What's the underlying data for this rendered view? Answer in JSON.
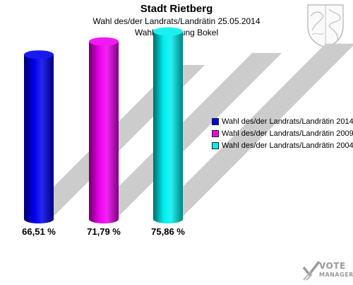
{
  "header": {
    "title": "Stadt Rietberg",
    "subtitle": "Wahl des/der Landrats/Landrätin 25.05.2014",
    "subtitle2": "Wahlbeteiligung Bokel"
  },
  "chart_data": {
    "type": "bar",
    "style": "3d-cylinder",
    "title": "Stadt Rietberg",
    "categories": [
      "Wahl des/der Landrats/Landrätin 2014",
      "Wahl des/der Landrats/Landrätin 2009",
      "Wahl des/der Landrats/Landrätin 2004"
    ],
    "values": [
      66.51,
      71.79,
      75.86
    ],
    "data_labels": [
      "66,51 %",
      "71,79 %",
      "75,86 %"
    ],
    "colors": [
      "#0000ee",
      "#ee00ee",
      "#00eeee"
    ],
    "unit": "%",
    "ylim": [
      0,
      80
    ],
    "grid": false,
    "legend_position": "right"
  },
  "legend": {
    "items": [
      {
        "label": "Wahl des/der Landrats/Landrätin 2014",
        "color": "#0000ee"
      },
      {
        "label": "Wahl des/der Landrats/Landrätin 2009",
        "color": "#ee00ee"
      },
      {
        "label": "Wahl des/der Landrats/Landrätin 2004",
        "color": "#00eeee"
      }
    ]
  },
  "branding": {
    "line1": "VOTE",
    "line2": "MANAGER",
    "icon": "vote-manager-logo-icon",
    "crest_icon": "coat-of-arms-icon"
  }
}
